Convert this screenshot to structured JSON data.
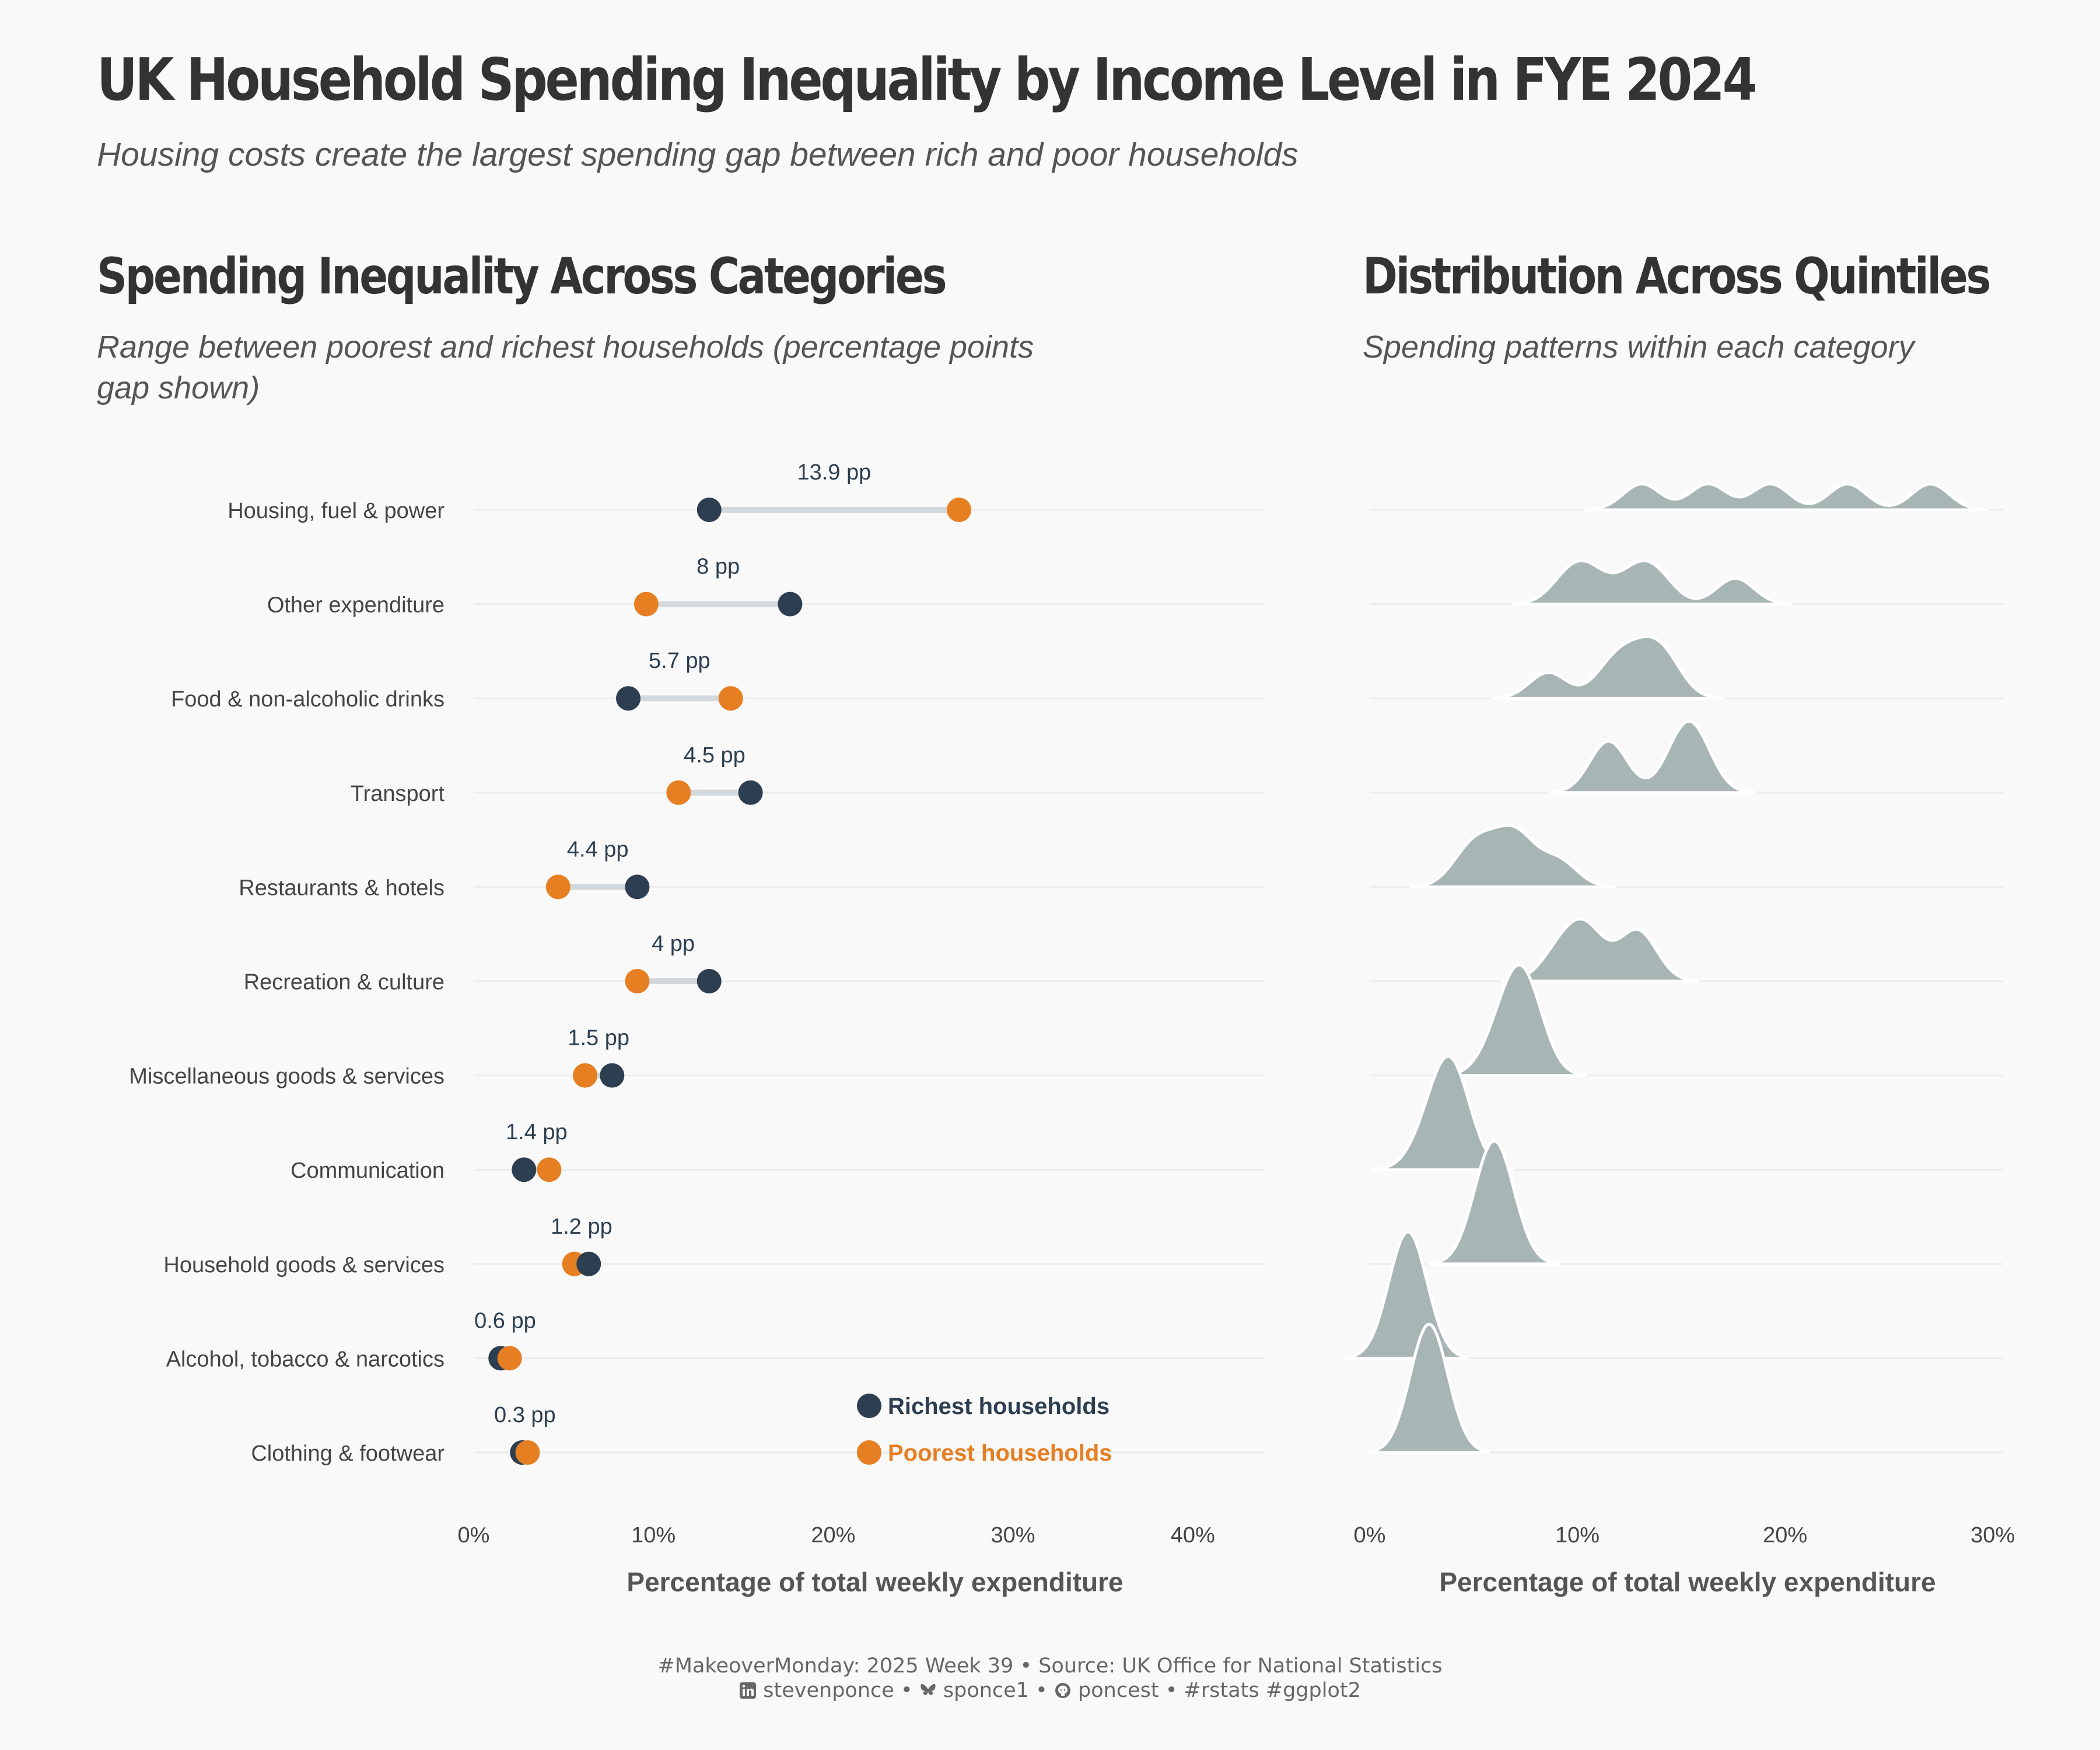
{
  "header": {
    "title": "UK Household Spending Inequality by Income Level in FYE 2024",
    "subtitle": "Housing costs create the largest spending gap between rich and poor households"
  },
  "left_panel": {
    "title": "Spending Inequality Across Categories",
    "subtitle": "Range between poorest and richest households (percentage points gap shown)"
  },
  "right_panel": {
    "title": "Distribution Across Quintiles",
    "subtitle": "Spending patterns within each category"
  },
  "caption": {
    "line1": "#MakeoverMonday: 2025 Week 39 • Source: UK Office for National Statistics",
    "linkedin": "stevenponce",
    "bluesky": "sponce1",
    "github": "poncest",
    "tags": "#rstats #ggplot2",
    "sep": "•"
  },
  "colors": {
    "richest": "#2c3e50",
    "poorest": "#e67e22",
    "segment": "#d3d8dc",
    "ridge": "#a8b5b5",
    "grid": "#ececec"
  },
  "chart_data": [
    {
      "type": "dumbbell",
      "title": "Spending Inequality Across Categories",
      "xlabel": "Percentage of total weekly expenditure",
      "xlim": [
        0,
        44
      ],
      "x_ticks": [
        0,
        10,
        20,
        30,
        40
      ],
      "x_tick_labels": [
        "0%",
        "10%",
        "20%",
        "30%",
        "40%"
      ],
      "legend": {
        "placement": "bottom-right",
        "entries": [
          "Richest households",
          "Poorest households"
        ]
      },
      "categories": [
        "Housing, fuel & power",
        "Other expenditure",
        "Food & non-alcoholic drinks",
        "Transport",
        "Restaurants & hotels",
        "Recreation & culture",
        "Miscellaneous goods & services",
        "Communication",
        "Household goods & services",
        "Alcohol, tobacco & narcotics",
        "Clothing & footwear"
      ],
      "richest": [
        13.1,
        17.6,
        8.6,
        15.4,
        9.1,
        13.1,
        7.7,
        2.8,
        6.4,
        1.5,
        2.7
      ],
      "poorest": [
        27.0,
        9.6,
        14.3,
        11.4,
        4.7,
        9.1,
        6.2,
        4.2,
        5.6,
        2.0,
        3.0
      ],
      "gap_labels": [
        "13.9 pp",
        "8 pp",
        "5.7 pp",
        "4.5 pp",
        "4.4 pp",
        "4 pp",
        "1.5 pp",
        "1.4 pp",
        "1.2 pp",
        "0.6 pp",
        "0.3 pp"
      ]
    },
    {
      "type": "ridgeline",
      "title": "Distribution Across Quintiles",
      "xlabel": "Percentage of total weekly expenditure",
      "xlim": [
        0,
        30.5
      ],
      "x_ticks": [
        0,
        10,
        20,
        30
      ],
      "x_tick_labels": [
        "0%",
        "10%",
        "20%",
        "30%"
      ],
      "bandwidth": 0.9,
      "categories": [
        "Housing, fuel & power",
        "Other expenditure",
        "Food & non-alcoholic drinks",
        "Transport",
        "Restaurants & hotels",
        "Recreation & culture",
        "Miscellaneous goods & services",
        "Communication",
        "Household goods & services",
        "Alcohol, tobacco & narcotics",
        "Clothing & footwear"
      ],
      "quintile_values": [
        [
          13.1,
          16.3,
          19.3,
          23.0,
          27.0
        ],
        [
          9.6,
          10.7,
          12.7,
          13.8,
          17.6
        ],
        [
          8.6,
          11.6,
          12.6,
          13.6,
          14.3
        ],
        [
          11.4,
          11.6,
          14.9,
          15.8,
          15.4
        ],
        [
          4.7,
          5.6,
          6.8,
          7.3,
          9.1
        ],
        [
          9.1,
          10.6,
          10.2,
          12.7,
          13.1
        ],
        [
          6.2,
          6.9,
          7.3,
          7.5,
          7.7
        ],
        [
          2.8,
          3.6,
          3.9,
          4.0,
          4.2
        ],
        [
          5.6,
          5.8,
          6.0,
          6.2,
          6.4
        ],
        [
          1.5,
          1.8,
          1.9,
          2.0,
          2.0
        ],
        [
          2.7,
          2.8,
          2.9,
          2.9,
          3.0
        ]
      ]
    }
  ]
}
